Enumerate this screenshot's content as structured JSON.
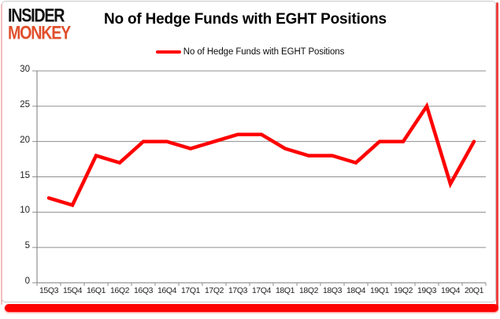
{
  "brand": {
    "line1": "INSIDER",
    "line2": "MONKEY"
  },
  "header": {
    "title": "No of Hedge Funds with EGHT Positions"
  },
  "legend": {
    "label": "No of Hedge Funds with EGHT Positions"
  },
  "colors": {
    "line": "#fe0000",
    "grid": "#8f8f8f",
    "axis": "#7a7a7a",
    "tick": "#8f8f8f",
    "label_text": "#1f1f1f",
    "brand_black": "#111111",
    "brand_orange": "#e0502c",
    "frame_red": "#fd0002",
    "frame_pink": "#f2bcbc",
    "card_border": "#c9c9c9"
  },
  "chart_data": {
    "type": "line",
    "title": "No of Hedge Funds with EGHT Positions",
    "xlabel": "",
    "ylabel": "",
    "categories": [
      "15Q3",
      "15Q4",
      "16Q1",
      "16Q2",
      "16Q3",
      "16Q4",
      "17Q1",
      "17Q2",
      "17Q3",
      "17Q4",
      "18Q1",
      "18Q2",
      "18Q3",
      "18Q4",
      "19Q1",
      "19Q2",
      "19Q3",
      "19Q4",
      "20Q1"
    ],
    "series": [
      {
        "name": "No of Hedge Funds with EGHT Positions",
        "color": "#fe0000",
        "values": [
          12,
          11,
          18,
          17,
          20,
          20,
          19,
          20,
          21,
          21,
          19,
          18,
          18,
          17,
          20,
          20,
          25,
          14,
          20
        ]
      }
    ],
    "ylim": [
      0,
      30
    ],
    "yticks": [
      0,
      5,
      10,
      15,
      20,
      25,
      30
    ],
    "grid": true,
    "legend_position": "top"
  }
}
